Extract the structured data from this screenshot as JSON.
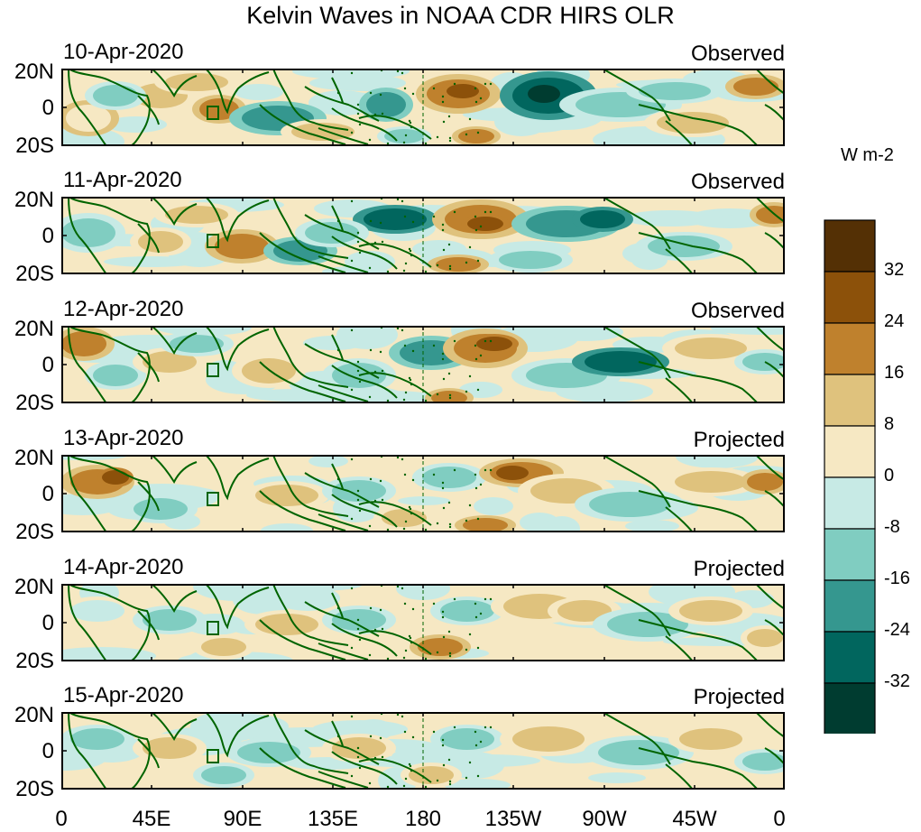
{
  "title": "Kelvin Waves in NOAA CDR HIRS OLR",
  "panels": [
    {
      "date": "10-Apr-2020",
      "status": "Observed"
    },
    {
      "date": "11-Apr-2020",
      "status": "Observed"
    },
    {
      "date": "12-Apr-2020",
      "status": "Observed"
    },
    {
      "date": "13-Apr-2020",
      "status": "Projected"
    },
    {
      "date": "14-Apr-2020",
      "status": "Projected"
    },
    {
      "date": "15-Apr-2020",
      "status": "Projected"
    }
  ],
  "lat_labels": [
    "20N",
    "0",
    "20S"
  ],
  "lon_labels": [
    "0",
    "45E",
    "90E",
    "135E",
    "180",
    "135W",
    "90W",
    "45W",
    "0"
  ],
  "colorbar": {
    "units": "W m-2",
    "labels": [
      "32",
      "24",
      "16",
      "8",
      "0",
      "-8",
      "-16",
      "-24",
      "-32"
    ],
    "colors": [
      "#543005",
      "#8c510a",
      "#bf812d",
      "#dfc27d",
      "#f6e8c3",
      "#c7eae5",
      "#80cdc1",
      "#35978f",
      "#01665e",
      "#003c30"
    ]
  },
  "land_color": "#006400"
}
